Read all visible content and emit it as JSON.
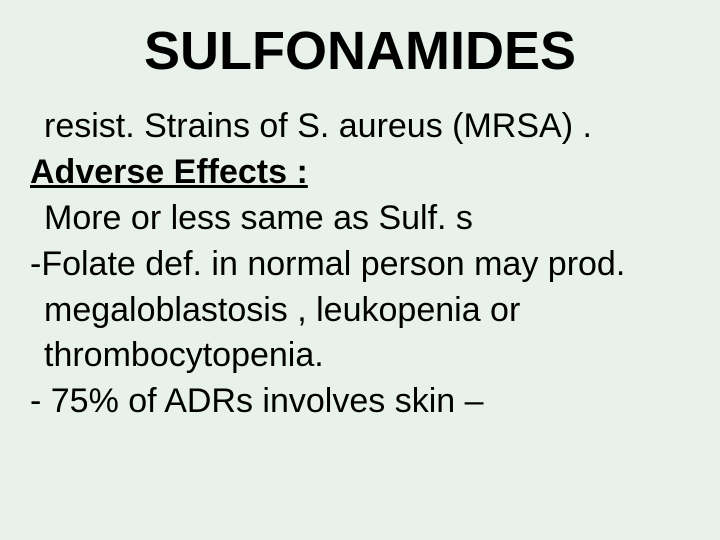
{
  "slide": {
    "title": "SULFONAMIDES",
    "title_fontsize": 54,
    "title_color": "#000000",
    "background_color": "#e8f2ea",
    "body_fontsize": 34,
    "body_color": "#000000",
    "heading_color": "#000000",
    "font_family": "Arial, Helvetica, sans-serif",
    "lines": {
      "l0": " resist. Strains of S. aureus (MRSA) .",
      "heading": "Adverse Effects :",
      "l2": " More or less same as Sulf. s",
      "l3": "-Folate def. in normal person may prod.",
      "l4": " megaloblastosis , leukopenia or",
      "l5": " thrombocytopenia.",
      "l6": "- 75% of ADRs involves skin –"
    }
  }
}
